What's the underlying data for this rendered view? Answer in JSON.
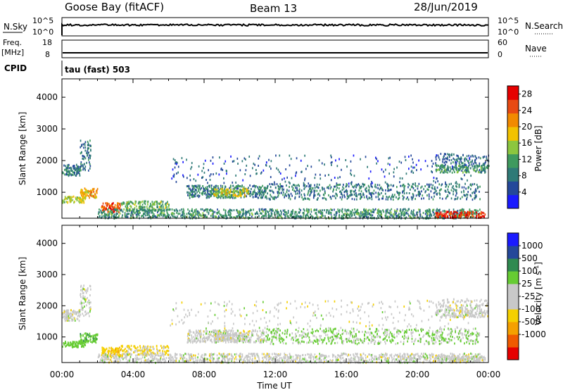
{
  "header": {
    "station": "Goose Bay (fitACF)",
    "beam": "Beam 13",
    "date": "28/Jun/2019"
  },
  "strips": {
    "nsky": {
      "left_label": "N.Sky",
      "left_ticks": [
        "10^5",
        "10^0"
      ],
      "right_label": "N.Search",
      "right_ticks": [
        "10^5",
        "10^0"
      ]
    },
    "freq": {
      "left_label_1": "Freq.",
      "left_label_2": "[MHz]",
      "left_ticks": [
        "18",
        "8"
      ],
      "right_label": "Nave",
      "right_ticks": [
        "60",
        "0"
      ]
    },
    "cpid": {
      "label": "CPID",
      "mode": "tau (fast) 503"
    }
  },
  "colors": {
    "power_scale": [
      "#1a1aff",
      "#24489a",
      "#2f7a77",
      "#3f9a5e",
      "#8cc63f",
      "#f2c200",
      "#f28a00",
      "#e84a12",
      "#e60000"
    ],
    "velocity_scale": [
      "#e60000",
      "#f05a00",
      "#f5a000",
      "#f5d000",
      "#c8c8c8",
      "#c8c8c8",
      "#66cc33",
      "#2f8a50",
      "#24489a",
      "#1a1aff"
    ]
  },
  "chart_data": [
    {
      "type": "heatmap",
      "name": "power",
      "xlabel": "Time UT",
      "ylabel": "Slant Range [km]",
      "x_ticks": [
        "00:00",
        "04:00",
        "08:00",
        "12:00",
        "16:00",
        "20:00",
        "00:00"
      ],
      "x_range_hours": [
        0,
        24
      ],
      "y_ticks": [
        1000,
        2000,
        3000,
        4000
      ],
      "y_range": [
        180,
        4580
      ],
      "colorbar": {
        "label": "Power [dB]",
        "ticks": [
          4,
          8,
          12,
          16,
          20,
          24,
          28
        ],
        "range": [
          0,
          30
        ]
      },
      "regions": [
        {
          "t": [
            0.0,
            1.0
          ],
          "r": [
            1550,
            1900
          ],
          "value": 8,
          "density": 0.8
        },
        {
          "t": [
            1.0,
            1.6
          ],
          "r": [
            1700,
            2700
          ],
          "value": 8,
          "density": 0.35
        },
        {
          "t": [
            0.0,
            1.3
          ],
          "r": [
            700,
            900
          ],
          "value": 16,
          "density": 0.85
        },
        {
          "t": [
            1.0,
            2.0
          ],
          "r": [
            850,
            1150
          ],
          "value": 20,
          "density": 0.75
        },
        {
          "t": [
            2.2,
            3.3
          ],
          "r": [
            400,
            700
          ],
          "value": 25,
          "density": 0.85
        },
        {
          "t": [
            3.3,
            6.0
          ],
          "r": [
            450,
            750
          ],
          "value": 13,
          "density": 0.6
        },
        {
          "t": [
            2.0,
            23.5
          ],
          "r": [
            200,
            500
          ],
          "value": 10,
          "density": 0.55
        },
        {
          "t": [
            7.0,
            11.5
          ],
          "r": [
            850,
            1250
          ],
          "value": 9,
          "density": 0.6
        },
        {
          "t": [
            8.5,
            10.5
          ],
          "r": [
            900,
            1150
          ],
          "value": 17,
          "density": 0.7
        },
        {
          "t": [
            11.5,
            23.5
          ],
          "r": [
            800,
            1300
          ],
          "value": 8,
          "density": 0.3
        },
        {
          "t": [
            6.0,
            23.0
          ],
          "r": [
            1300,
            2200
          ],
          "value": 6,
          "density": 0.05
        },
        {
          "t": [
            21.0,
            24.0
          ],
          "r": [
            1650,
            1900
          ],
          "value": 10,
          "density": 0.7
        },
        {
          "t": [
            21.0,
            24.0
          ],
          "r": [
            1900,
            2250
          ],
          "value": 7,
          "density": 0.3
        },
        {
          "t": [
            21.0,
            23.8
          ],
          "r": [
            220,
            420
          ],
          "value": 26,
          "density": 0.75
        }
      ]
    },
    {
      "type": "heatmap",
      "name": "velocity",
      "xlabel": "Time UT",
      "ylabel": "Slant Range [km]",
      "x_ticks": [
        "00:00",
        "04:00",
        "08:00",
        "12:00",
        "16:00",
        "20:00",
        "00:00"
      ],
      "x_range_hours": [
        0,
        24
      ],
      "y_ticks": [
        1000,
        2000,
        3000,
        4000
      ],
      "y_range": [
        180,
        4580
      ],
      "colorbar": {
        "label": "Velocity [m s^-1]",
        "ticks": [
          1000,
          500,
          100,
          25,
          -25,
          -100,
          -500,
          -1000
        ]
      },
      "regions": [
        {
          "t": [
            0.0,
            1.0
          ],
          "r": [
            1550,
            1900
          ],
          "value": 0,
          "density": 0.8
        },
        {
          "t": [
            1.0,
            1.6
          ],
          "r": [
            1700,
            2700
          ],
          "value": 0,
          "density": 0.35
        },
        {
          "t": [
            0.0,
            1.3
          ],
          "r": [
            700,
            900
          ],
          "value": 60,
          "density": 0.85
        },
        {
          "t": [
            1.0,
            2.0
          ],
          "r": [
            850,
            1150
          ],
          "value": 80,
          "density": 0.75
        },
        {
          "t": [
            2.2,
            3.3
          ],
          "r": [
            400,
            700
          ],
          "value": -80,
          "density": 0.85
        },
        {
          "t": [
            3.3,
            6.0
          ],
          "r": [
            450,
            750
          ],
          "value": -30,
          "density": 0.6
        },
        {
          "t": [
            2.0,
            23.5
          ],
          "r": [
            200,
            500
          ],
          "value": 0,
          "density": 0.55
        },
        {
          "t": [
            7.0,
            11.5
          ],
          "r": [
            850,
            1250
          ],
          "value": 0,
          "density": 0.6
        },
        {
          "t": [
            8.5,
            10.5
          ],
          "r": [
            900,
            1150
          ],
          "value": 0,
          "density": 0.7
        },
        {
          "t": [
            11.5,
            23.5
          ],
          "r": [
            800,
            1300
          ],
          "value": 30,
          "density": 0.3
        },
        {
          "t": [
            6.0,
            23.0
          ],
          "r": [
            1300,
            2200
          ],
          "value": 0,
          "density": 0.05
        },
        {
          "t": [
            21.0,
            24.0
          ],
          "r": [
            1650,
            1900
          ],
          "value": 0,
          "density": 0.7
        },
        {
          "t": [
            21.0,
            24.0
          ],
          "r": [
            1900,
            2250
          ],
          "value": 0,
          "density": 0.3
        },
        {
          "t": [
            21.0,
            23.8
          ],
          "r": [
            220,
            420
          ],
          "value": 0,
          "density": 0.75
        }
      ]
    }
  ]
}
